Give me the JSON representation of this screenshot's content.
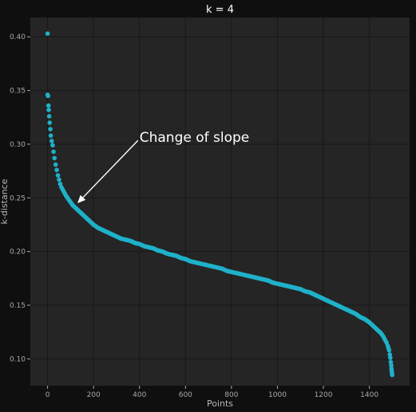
{
  "chart_data": {
    "type": "scatter",
    "title": "k = 4",
    "xlabel": "Points",
    "ylabel": "k-distance",
    "xlim": [
      -75,
      1575
    ],
    "ylim": [
      0.075,
      0.418
    ],
    "xticks": [
      0,
      200,
      400,
      600,
      800,
      1000,
      1200,
      1400
    ],
    "yticks": [
      0.1,
      0.15,
      0.2,
      0.25,
      0.3,
      0.35,
      0.4
    ],
    "grid": true,
    "annotation": {
      "text": "Change of slope",
      "text_x": 400,
      "text_y": 0.302,
      "arrow_to_x": 130,
      "arrow_to_y": 0.245
    },
    "series": [
      {
        "color": "#1fb1c9",
        "x": [
          0,
          0,
          2,
          4,
          5,
          7,
          9,
          12,
          14,
          18,
          22,
          26,
          30,
          35,
          40,
          45,
          50,
          55,
          60,
          65,
          70,
          75,
          80,
          90,
          100,
          110,
          120,
          130,
          140,
          150,
          160,
          170,
          180,
          190,
          200,
          220,
          240,
          260,
          280,
          300,
          320,
          340,
          360,
          380,
          400,
          420,
          440,
          460,
          480,
          500,
          520,
          540,
          560,
          580,
          600,
          620,
          640,
          660,
          680,
          700,
          720,
          740,
          760,
          780,
          800,
          820,
          840,
          860,
          880,
          900,
          920,
          940,
          960,
          980,
          1000,
          1020,
          1040,
          1060,
          1080,
          1100,
          1120,
          1140,
          1160,
          1180,
          1200,
          1220,
          1240,
          1260,
          1280,
          1300,
          1320,
          1340,
          1360,
          1380,
          1400,
          1410,
          1420,
          1430,
          1440,
          1450,
          1460,
          1465,
          1470,
          1475,
          1480,
          1483,
          1486,
          1489,
          1491,
          1493,
          1495,
          1496,
          1497,
          1498,
          1499
        ],
        "values": [
          0.403,
          0.346,
          0.345,
          0.336,
          0.332,
          0.326,
          0.32,
          0.314,
          0.308,
          0.303,
          0.299,
          0.293,
          0.287,
          0.281,
          0.276,
          0.271,
          0.267,
          0.263,
          0.26,
          0.258,
          0.256,
          0.254,
          0.252,
          0.249,
          0.246,
          0.243,
          0.241,
          0.239,
          0.237,
          0.235,
          0.233,
          0.231,
          0.229,
          0.227,
          0.225,
          0.222,
          0.22,
          0.218,
          0.216,
          0.214,
          0.212,
          0.211,
          0.21,
          0.208,
          0.207,
          0.205,
          0.204,
          0.203,
          0.201,
          0.2,
          0.198,
          0.197,
          0.196,
          0.194,
          0.193,
          0.191,
          0.19,
          0.189,
          0.188,
          0.187,
          0.186,
          0.185,
          0.184,
          0.182,
          0.181,
          0.18,
          0.179,
          0.178,
          0.177,
          0.176,
          0.175,
          0.174,
          0.173,
          0.171,
          0.17,
          0.169,
          0.168,
          0.167,
          0.166,
          0.165,
          0.163,
          0.162,
          0.16,
          0.158,
          0.156,
          0.154,
          0.152,
          0.15,
          0.148,
          0.146,
          0.144,
          0.142,
          0.139,
          0.137,
          0.134,
          0.132,
          0.13,
          0.128,
          0.126,
          0.124,
          0.121,
          0.119,
          0.117,
          0.115,
          0.112,
          0.11,
          0.108,
          0.104,
          0.101,
          0.097,
          0.094,
          0.091,
          0.089,
          0.087,
          0.085
        ]
      }
    ]
  },
  "colors": {
    "background": "#0f0f0f",
    "plot_area": "#252525",
    "grid": "#181818",
    "points": "#1fb1c9",
    "tick_text": "#a8a8a8",
    "label_text": "#b8b8b8",
    "title_text": "#ffffff",
    "annotation": "#ffffff"
  }
}
